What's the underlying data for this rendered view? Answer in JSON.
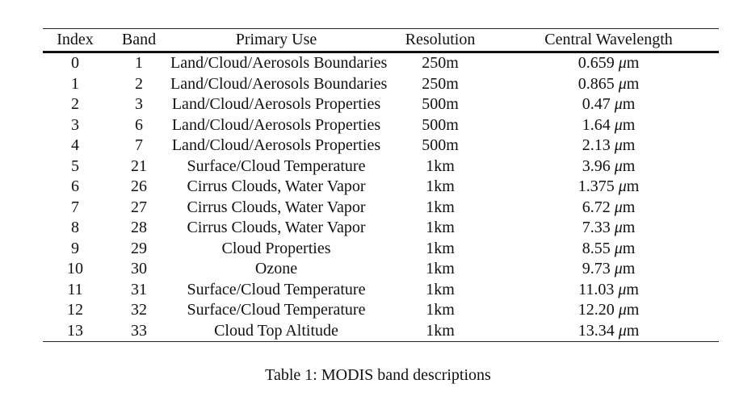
{
  "table": {
    "headers": [
      "Index",
      "Band",
      "Primary Use",
      "Resolution",
      "Central Wavelength"
    ],
    "unit": "m",
    "unit_prefix": "μ",
    "rows": [
      {
        "index": "0",
        "band": "1",
        "use": "Land/Cloud/Aerosols Boundaries",
        "resolution": "250m",
        "wavelength": "0.659"
      },
      {
        "index": "1",
        "band": "2",
        "use": "Land/Cloud/Aerosols Boundaries",
        "resolution": "250m",
        "wavelength": "0.865"
      },
      {
        "index": "2",
        "band": "3",
        "use": "Land/Cloud/Aerosols Properties",
        "resolution": "500m",
        "wavelength": "0.47"
      },
      {
        "index": "3",
        "band": "6",
        "use": "Land/Cloud/Aerosols Properties",
        "resolution": "500m",
        "wavelength": "1.64"
      },
      {
        "index": "4",
        "band": "7",
        "use": "Land/Cloud/Aerosols Properties",
        "resolution": "500m",
        "wavelength": "2.13"
      },
      {
        "index": "5",
        "band": "21",
        "use": "Surface/Cloud Temperature",
        "resolution": "1km",
        "wavelength": "3.96"
      },
      {
        "index": "6",
        "band": "26",
        "use": "Cirrus Clouds, Water Vapor",
        "resolution": "1km",
        "wavelength": "1.375"
      },
      {
        "index": "7",
        "band": "27",
        "use": "Cirrus Clouds, Water Vapor",
        "resolution": "1km",
        "wavelength": "6.72"
      },
      {
        "index": "8",
        "band": "28",
        "use": "Cirrus Clouds, Water Vapor",
        "resolution": "1km",
        "wavelength": "7.33"
      },
      {
        "index": "9",
        "band": "29",
        "use": "Cloud Properties",
        "resolution": "1km",
        "wavelength": "8.55"
      },
      {
        "index": "10",
        "band": "30",
        "use": "Ozone",
        "resolution": "1km",
        "wavelength": "9.73"
      },
      {
        "index": "11",
        "band": "31",
        "use": "Surface/Cloud Temperature",
        "resolution": "1km",
        "wavelength": "11.03"
      },
      {
        "index": "12",
        "band": "32",
        "use": "Surface/Cloud Temperature",
        "resolution": "1km",
        "wavelength": "12.20"
      },
      {
        "index": "13",
        "band": "33",
        "use": "Cloud Top Altitude",
        "resolution": "1km",
        "wavelength": "13.34"
      }
    ]
  },
  "caption": "Table 1: MODIS band descriptions"
}
